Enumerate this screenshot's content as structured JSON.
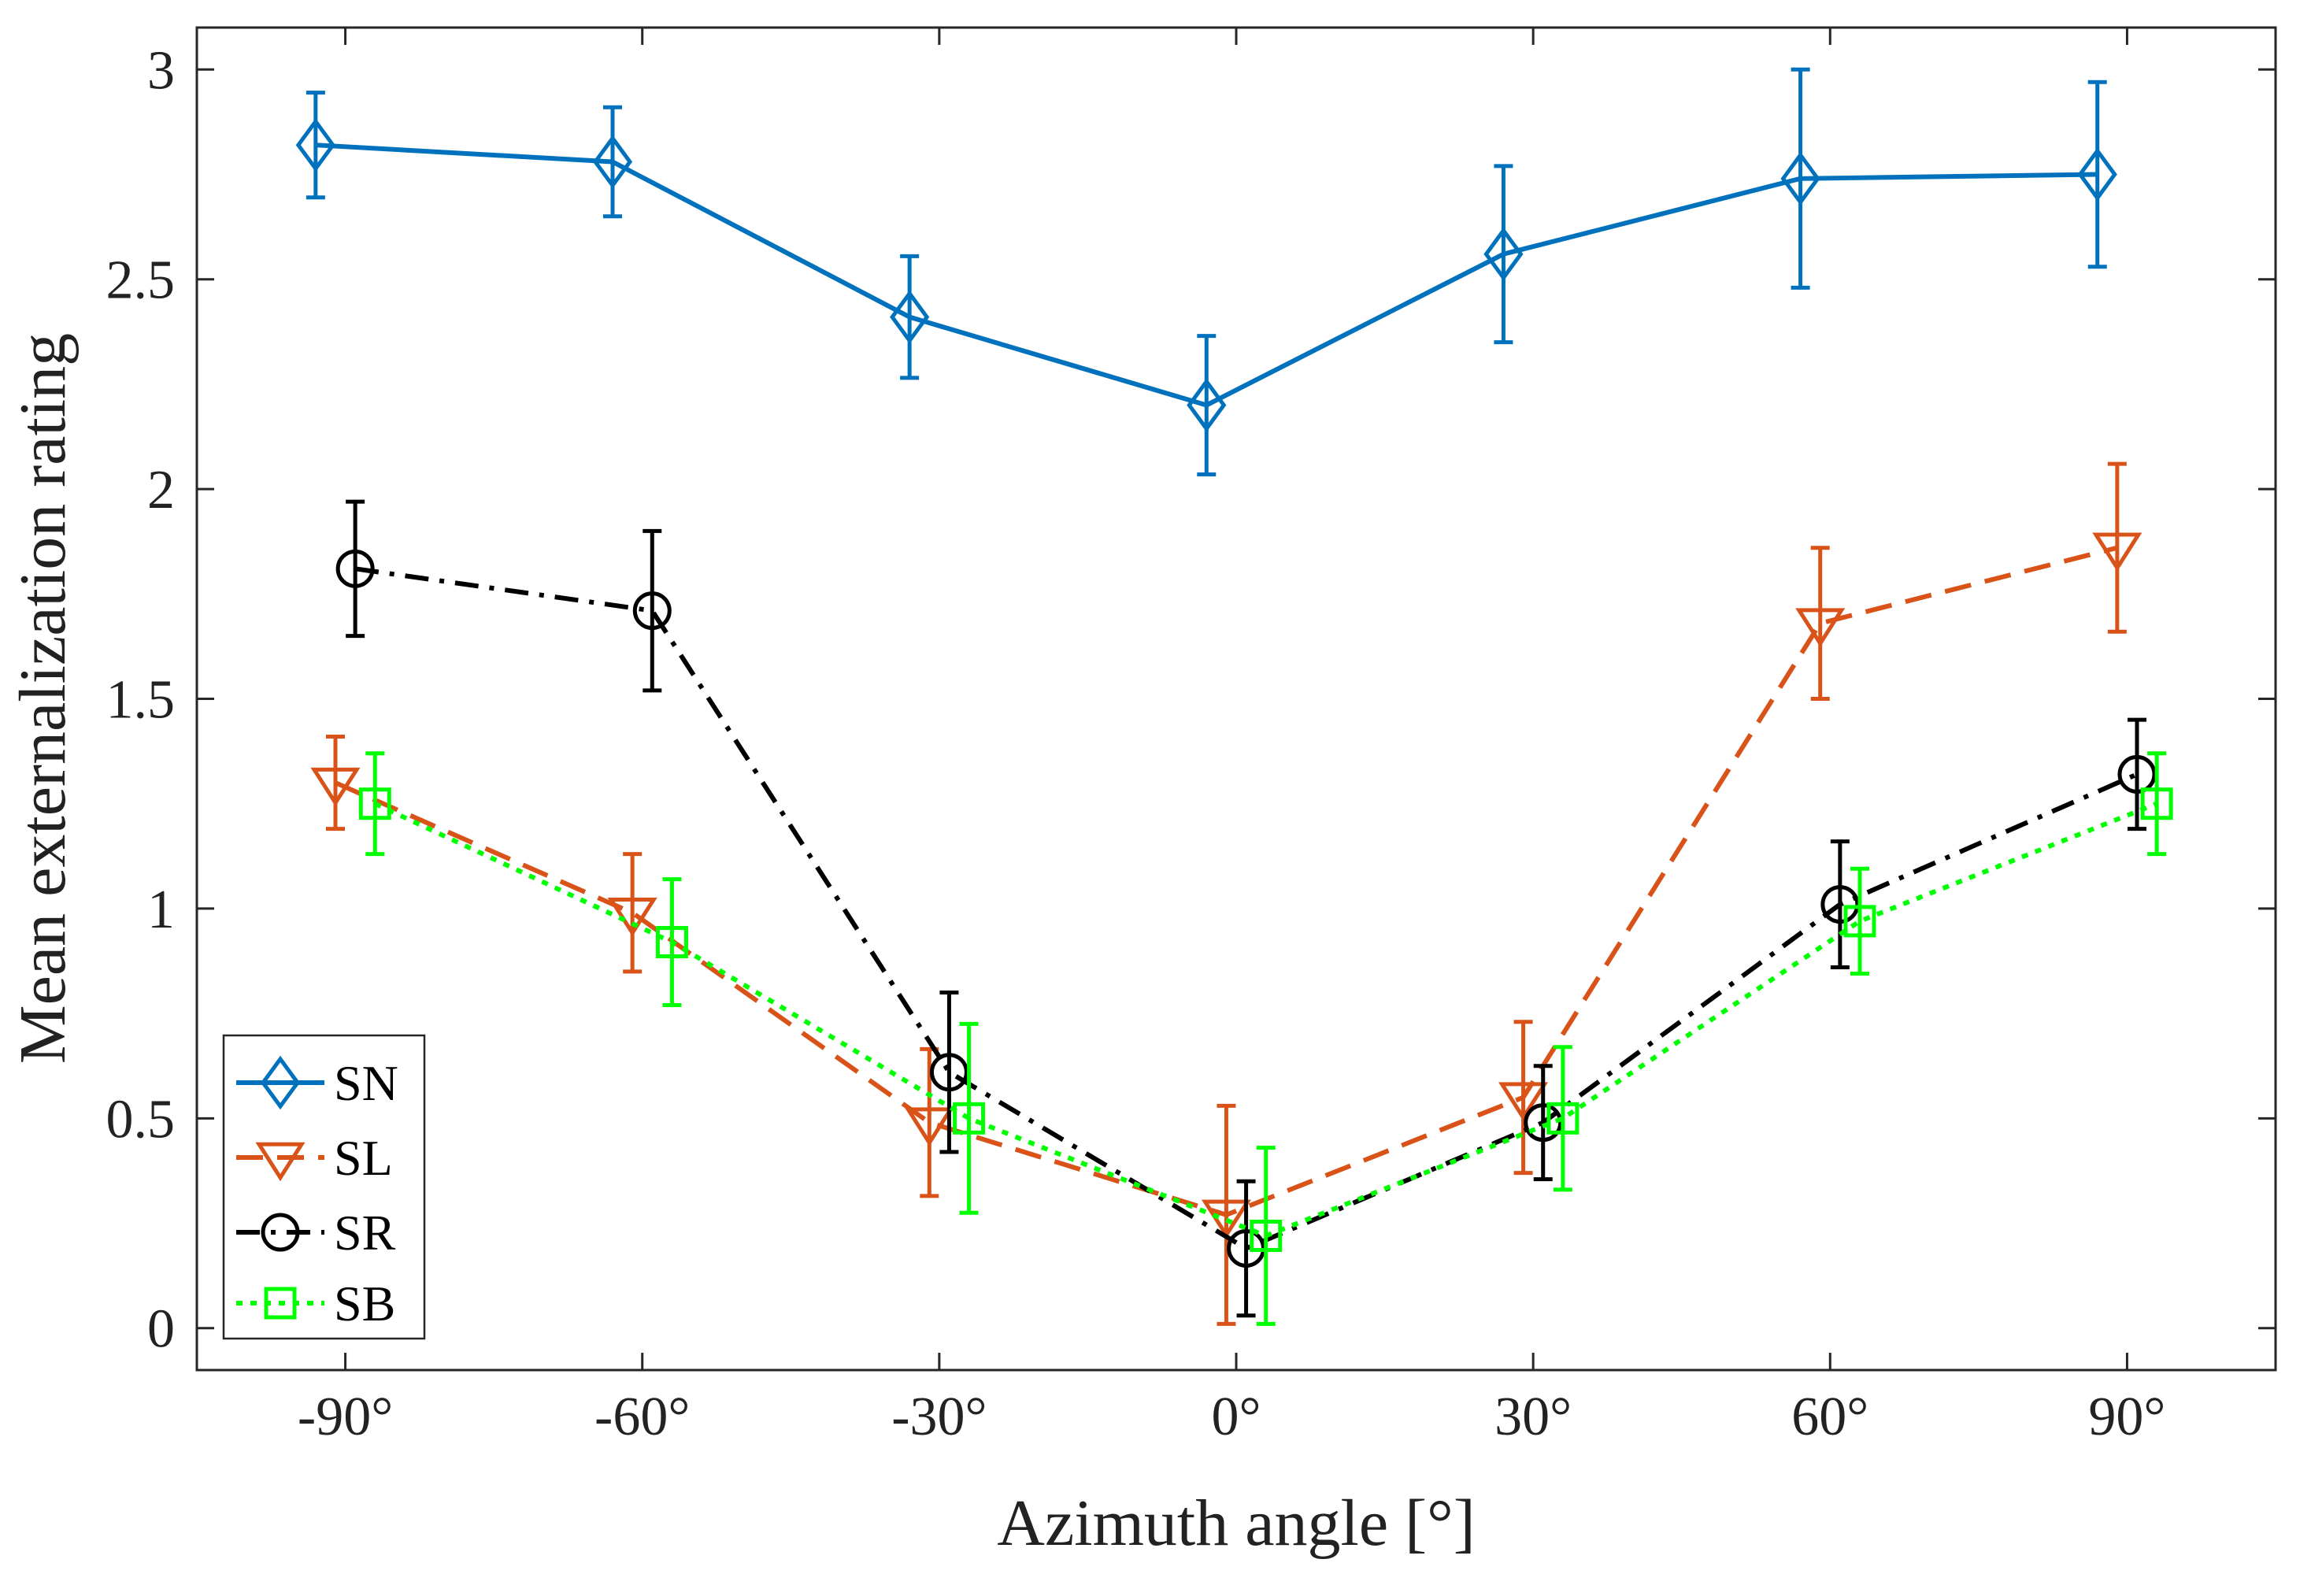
{
  "chart_data": {
    "type": "line",
    "title": "",
    "xlabel": "Azimuth angle [°]",
    "ylabel": "Mean externalization rating",
    "xlim": [
      -105,
      105
    ],
    "ylim": [
      -0.1,
      3.1
    ],
    "x_ticks": [
      -90,
      -60,
      -30,
      0,
      30,
      60,
      90
    ],
    "x_tick_labels": [
      "-90°",
      "-60°",
      "-30°",
      "0°",
      "30°",
      "60°",
      "90°"
    ],
    "y_ticks": [
      0,
      0.5,
      1,
      1.5,
      2,
      2.5,
      3
    ],
    "y_tick_labels": [
      "0",
      "0.5",
      "1",
      "1.5",
      "2",
      "2.5",
      "3"
    ],
    "grid": false,
    "legend_position": "bottom-left",
    "series": [
      {
        "name": "SN",
        "color": "#0072BD",
        "marker": "diamond",
        "line_style": "solid",
        "x": [
          -93,
          -63,
          -33,
          -3,
          27,
          57,
          87
        ],
        "values": [
          2.82,
          2.78,
          2.41,
          2.2,
          2.56,
          2.74,
          2.75
        ],
        "errors": [
          0.125,
          0.13,
          0.145,
          0.165,
          0.21,
          0.26,
          0.22
        ]
      },
      {
        "name": "SL",
        "color": "#D95319",
        "marker": "triangle-down",
        "line_style": "dashed",
        "x": [
          -91,
          -61,
          -31,
          -1,
          29,
          59,
          89
        ],
        "values": [
          1.3,
          0.99,
          0.49,
          0.27,
          0.55,
          1.68,
          1.86
        ],
        "errors": [
          0.11,
          0.14,
          0.175,
          0.26,
          0.18,
          0.18,
          0.2
        ]
      },
      {
        "name": "SR",
        "color": "#000000",
        "marker": "circle",
        "line_style": "dash-dot",
        "x": [
          -89,
          -59,
          -29,
          1,
          31,
          61,
          91
        ],
        "values": [
          1.81,
          1.71,
          0.61,
          0.19,
          0.49,
          1.01,
          1.32
        ],
        "errors": [
          0.16,
          0.19,
          0.19,
          0.16,
          0.135,
          0.15,
          0.13
        ]
      },
      {
        "name": "SB",
        "color": "#00FF00",
        "marker": "square",
        "line_style": "dotted",
        "x": [
          -87,
          -57,
          -27,
          3,
          33,
          63,
          93
        ],
        "values": [
          1.25,
          0.92,
          0.5,
          0.22,
          0.5,
          0.97,
          1.25
        ],
        "errors": [
          0.12,
          0.15,
          0.225,
          0.21,
          0.17,
          0.125,
          0.12
        ]
      }
    ]
  }
}
